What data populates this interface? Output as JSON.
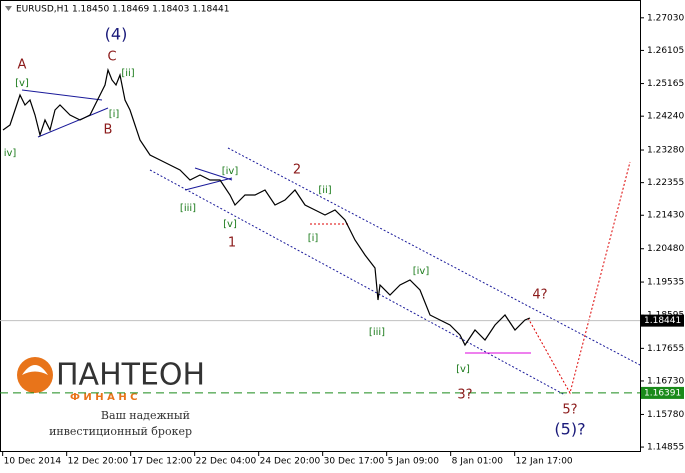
{
  "chart_data": {
    "type": "line",
    "title": "EURUSD,H1  1.18450 1.18469 1.18403 1.18441",
    "x": [
      0.06,
      1.38,
      2.31,
      3.25,
      4.19,
      5.13,
      6.06,
      7.0,
      7.94,
      8.88,
      9.81,
      10.75,
      12.63,
      14.5,
      16.38,
      18.25,
      19.19,
      19.75,
      20.5,
      21.25,
      22.0,
      22.94,
      23.88,
      24.81,
      25.75,
      27.63,
      29.5,
      31.38,
      33.25,
      35.13,
      37.0,
      38.88,
      40.75,
      42.63,
      43.56,
      45.44,
      47.31,
      49.19,
      51.06,
      52.94,
      54.81,
      56.69,
      58.56,
      60.44,
      62.31,
      64.19,
      66.06,
      67.94,
      69.81,
      70.38,
      70.75,
      72.63,
      74.5,
      76.38,
      78.25,
      80.13,
      82.0,
      83.88,
      85.75,
      86.69,
      88.56,
      90.44,
      92.31,
      94.19,
      96.06,
      97.94,
      98.88
    ],
    "series": [
      {
        "name": "EURUSD",
        "color": "#000000",
        "values": [
          1.23848,
          1.2399,
          1.24415,
          1.24841,
          1.24557,
          1.24699,
          1.24273,
          1.23706,
          1.24132,
          1.23848,
          1.24415,
          1.24557,
          1.24273,
          1.24132,
          1.24273,
          1.24841,
          1.25124,
          1.2555,
          1.25266,
          1.25124,
          1.25408,
          1.24699,
          1.24415,
          1.2399,
          1.23564,
          1.23139,
          1.22997,
          1.22855,
          1.22713,
          1.2243,
          1.22572,
          1.2243,
          1.2243,
          1.22004,
          1.21721,
          1.22004,
          1.22004,
          1.22146,
          1.21721,
          1.21863,
          1.22146,
          1.21721,
          1.21579,
          1.21437,
          1.21579,
          1.21295,
          1.20728,
          1.20303,
          1.19934,
          1.19026,
          1.19452,
          1.19168,
          1.19452,
          1.19593,
          1.1931,
          1.18601,
          1.18459,
          1.18317,
          1.18034,
          1.1775,
          1.18175,
          1.17892,
          1.18317,
          1.18601,
          1.18175,
          1.18459,
          1.18516
        ]
      }
    ],
    "xlim": [
      -0.5,
      119.5
    ],
    "xticks": [
      {
        "value": 0,
        "label": "10 Dec 2014"
      },
      {
        "value": 12,
        "label": "12 Dec 20:00"
      },
      {
        "value": 24,
        "label": "17 Dec 12:00"
      },
      {
        "value": 36,
        "label": "22 Dec 04:00"
      },
      {
        "value": 48,
        "label": "24 Dec 20:00"
      },
      {
        "value": 60,
        "label": "30 Dec 17:00"
      },
      {
        "value": 72,
        "label": "5 Jan 09:00"
      },
      {
        "value": 84,
        "label": "8 Jan 01:00"
      },
      {
        "value": 96,
        "label": "12 Jan 17:00"
      }
    ],
    "ylim": [
      1.14715,
      1.2745
    ],
    "yticks": [
      {
        "value": 1.2703,
        "label": "1.27030"
      },
      1.26105,
      1.25165,
      {
        "value": 1.2424,
        "label": "1.24240"
      },
      {
        "value": 1.2328,
        "label": "1.23280"
      },
      1.22355,
      {
        "value": 1.2143,
        "label": "1.21430"
      },
      {
        "value": 1.2048,
        "label": "1.20480"
      },
      1.19535,
      1.18595,
      1.17655,
      {
        "value": 1.1673,
        "label": "1.16730"
      },
      {
        "value": 1.1578,
        "label": "1.15780"
      },
      1.14855
    ],
    "price_line": 1.18441,
    "level": 1.16391,
    "annotations": [
      "(4)",
      "A",
      "C",
      "B",
      "[v]",
      "[ii]",
      "[i]",
      "iv]",
      "[iv]",
      "[iii]",
      "[v]",
      "1",
      "2",
      "[ii]",
      "[i]",
      "[iv]",
      "[iii]",
      "[v]",
      "3?",
      "4?",
      "5?",
      "(5)?"
    ]
  },
  "logo": {
    "name": "ПАНТЕОН",
    "sub": "Ф И Н А Н С",
    "line1": "Ваш надежный",
    "line2": "инвестиционный брокер"
  }
}
